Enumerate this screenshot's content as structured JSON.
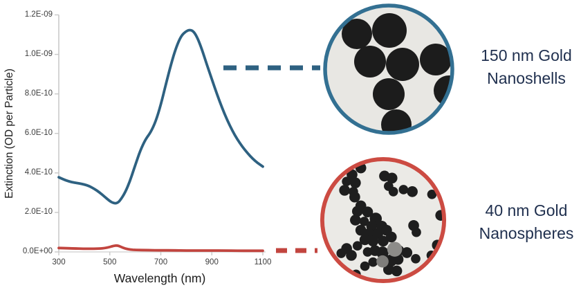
{
  "colors": {
    "curve_blue": "#2e6181",
    "curve_red": "#c2453f",
    "ring_blue": "#337092",
    "ring_red": "#cc4b42",
    "label_navy": "#1f2f4e"
  },
  "labels": {
    "nanoshells": {
      "line1": "150 nm Gold",
      "line2": "Nanoshells"
    },
    "nanospheres": {
      "line1": "40 nm Gold",
      "line2": "Nanospheres"
    }
  },
  "chart_data": {
    "type": "line",
    "title": "",
    "xlabel": "Wavelength (nm)",
    "ylabel": "Extinction (OD per Particle)",
    "x_range": [
      300,
      1100
    ],
    "y_range": [
      0,
      1.2e-09
    ],
    "grid": false,
    "legend_position": "none",
    "x_ticks": [
      300,
      500,
      700,
      900,
      1100
    ],
    "x_tick_labels": [
      "300",
      "500",
      "700",
      "900",
      "1100"
    ],
    "y_ticks": [
      0,
      2e-10,
      4e-10,
      6e-10,
      8e-10,
      1e-09,
      1.2e-09
    ],
    "y_tick_labels": [
      "0.0E+00",
      "2.0E-10",
      "4.0E-10",
      "6.0E-10",
      "8.0E-10",
      "1.0E-09",
      "1.2E-09"
    ],
    "series": [
      {
        "name": "150 nm Gold Nanoshells",
        "color": "#2e6181",
        "x": [
          300,
          320,
          340,
          360,
          380,
          400,
          420,
          440,
          460,
          480,
          500,
          510,
          520,
          530,
          540,
          560,
          580,
          600,
          620,
          640,
          660,
          680,
          700,
          720,
          740,
          760,
          780,
          800,
          815,
          830,
          845,
          860,
          880,
          900,
          920,
          940,
          960,
          980,
          1000,
          1020,
          1040,
          1060,
          1080,
          1100
        ],
        "y": [
          3.78e-10,
          3.66e-10,
          3.57e-10,
          3.51e-10,
          3.47e-10,
          3.42e-10,
          3.33e-10,
          3.19e-10,
          3.01e-10,
          2.79e-10,
          2.57e-10,
          2.5e-10,
          2.46e-10,
          2.48e-10,
          2.6e-10,
          3e-10,
          3.62e-10,
          4.4e-10,
          5.15e-10,
          5.7e-10,
          6.05e-10,
          6.6e-10,
          7.45e-10,
          8.5e-10,
          9.5e-10,
          1.035e-09,
          1.095e-09,
          1.118e-09,
          1.125e-09,
          1.115e-09,
          1.08e-09,
          1.03e-09,
          9.5e-10,
          8.75e-10,
          8e-10,
          7.3e-10,
          6.68e-10,
          6.15e-10,
          5.7e-10,
          5.32e-10,
          5e-10,
          4.72e-10,
          4.5e-10,
          4.32e-10
        ]
      },
      {
        "name": "40 nm Gold Nanospheres",
        "color": "#c2453f",
        "x": [
          300,
          350,
          400,
          450,
          480,
          500,
          515,
          530,
          545,
          560,
          580,
          600,
          650,
          700,
          750,
          800,
          850,
          900,
          950,
          1000,
          1050,
          1100
        ],
        "y": [
          2e-11,
          1.8e-11,
          1.6e-11,
          1.6e-11,
          1.9e-11,
          2.5e-11,
          3.1e-11,
          3.3e-11,
          2.5e-11,
          1.7e-11,
          1.2e-11,
          1e-11,
          9e-12,
          8e-12,
          8e-12,
          7e-12,
          7e-12,
          7e-12,
          7e-12,
          6e-12,
          6e-12,
          6e-12
        ]
      }
    ]
  },
  "tem_images": {
    "nanoshells": {
      "description": "TEM micrograph of 150 nm gold nanoshells",
      "background": "#e8e7e3",
      "particle_color": "#1c1c1c",
      "particles": [
        [
          50,
          45,
          22
        ],
        [
          97,
          40,
          25
        ],
        [
          69,
          85,
          23
        ],
        [
          116,
          89,
          24
        ],
        [
          164,
          82,
          23
        ],
        [
          183,
          127,
          22
        ],
        [
          96,
          132,
          23
        ],
        [
          107,
          176,
          22
        ]
      ]
    },
    "nanospheres": {
      "description": "TEM micrograph of 40 nm gold nanospheres",
      "background": "#ebeae6",
      "particle_color": "#1e1e1e",
      "particles": [
        [
          62,
          18,
          8
        ],
        [
          49,
          28,
          8
        ],
        [
          41,
          38,
          7
        ],
        [
          54,
          40,
          8
        ],
        [
          38,
          51,
          8
        ],
        [
          51,
          53,
          7
        ],
        [
          53,
          61,
          8
        ],
        [
          62,
          74,
          8
        ],
        [
          57,
          82,
          8
        ],
        [
          72,
          83,
          8
        ],
        [
          54,
          95,
          8
        ],
        [
          67,
          97,
          7
        ],
        [
          84,
          93,
          9
        ],
        [
          78,
          104,
          8
        ],
        [
          93,
          104,
          8
        ],
        [
          62,
          110,
          8
        ],
        [
          74,
          115,
          8
        ],
        [
          87,
          115,
          8
        ],
        [
          100,
          110,
          8
        ],
        [
          68,
          124,
          8
        ],
        [
          80,
          126,
          8
        ],
        [
          95,
          126,
          8
        ],
        [
          107,
          120,
          8
        ],
        [
          57,
          133,
          7
        ],
        [
          41,
          137,
          8
        ],
        [
          33,
          144,
          7
        ],
        [
          48,
          147,
          8
        ],
        [
          72,
          142,
          7
        ],
        [
          83,
          140,
          8
        ],
        [
          94,
          143,
          9
        ],
        [
          118,
          140,
          8
        ],
        [
          130,
          143,
          8
        ],
        [
          106,
          155,
          9
        ],
        [
          117,
          153,
          8
        ],
        [
          80,
          157,
          7
        ],
        [
          68,
          163,
          7
        ],
        [
          103,
          168,
          8
        ],
        [
          115,
          170,
          8
        ],
        [
          55,
          175,
          7
        ],
        [
          97,
          30,
          8
        ],
        [
          108,
          33,
          8
        ],
        [
          103,
          45,
          7
        ],
        [
          110,
          53,
          7
        ],
        [
          125,
          50,
          7
        ],
        [
          138,
          53,
          8
        ],
        [
          167,
          57,
          7
        ],
        [
          180,
          88,
          8
        ],
        [
          140,
          103,
          8
        ],
        [
          144,
          113,
          7
        ],
        [
          175,
          132,
          8
        ],
        [
          166,
          147,
          7
        ],
        [
          143,
          152,
          7
        ],
        [
          112,
          138,
          11,
          "#8d8c89"
        ],
        [
          94,
          156,
          9,
          "#7e7d7a"
        ]
      ]
    }
  }
}
